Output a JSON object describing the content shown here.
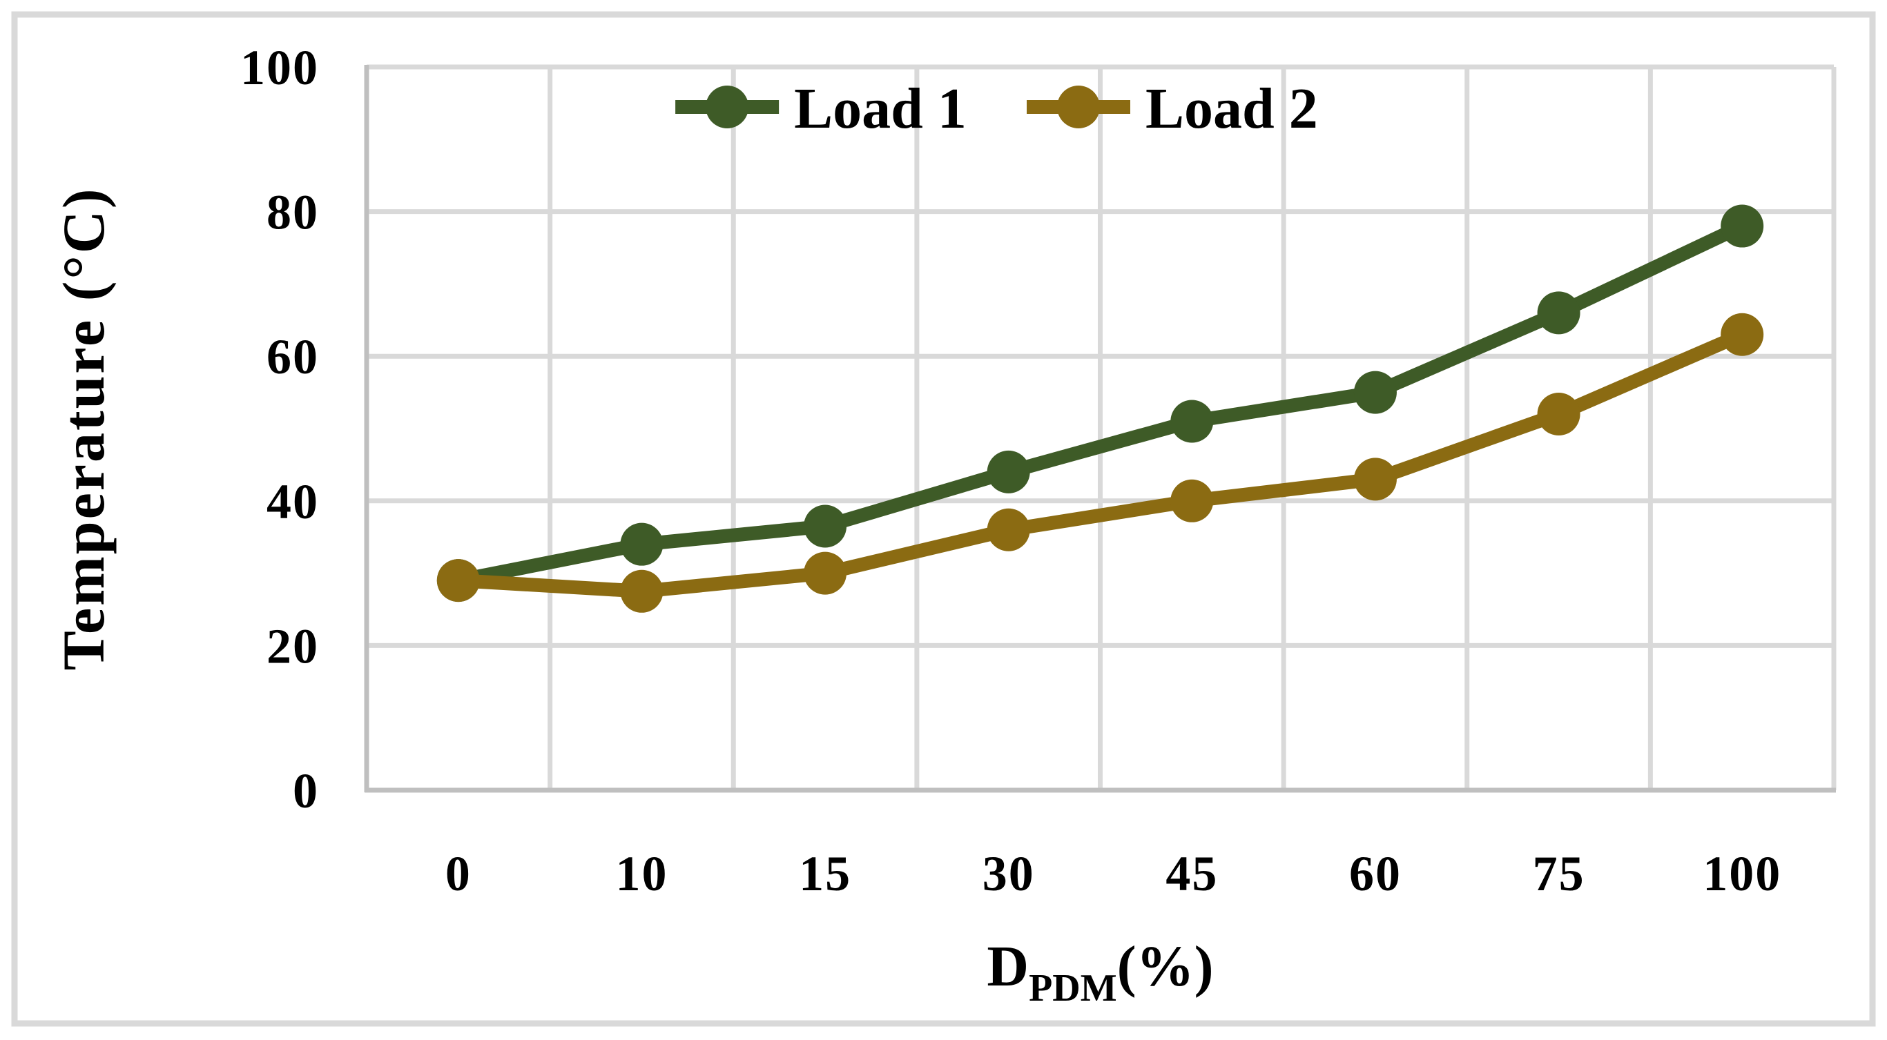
{
  "figure": {
    "background": "#FFFFFF",
    "border_color": "#D9D9D9"
  },
  "chart_data": {
    "type": "line",
    "title": "",
    "categories": [
      "0",
      "10",
      "15",
      "30",
      "45",
      "60",
      "75",
      "100"
    ],
    "series": [
      {
        "name": "Load 1",
        "color": "#3E5B27",
        "marker": "circle",
        "values": [
          29,
          34,
          36.5,
          44,
          51,
          55,
          66,
          78
        ]
      },
      {
        "name": "Load 2",
        "color": "#8B6B12",
        "marker": "circle",
        "values": [
          29,
          27.5,
          30,
          36,
          40,
          43,
          52,
          63
        ]
      }
    ],
    "xlabel": {
      "base": "D",
      "sub": "PDM",
      "suffix": "(%)"
    },
    "ylabel": "Temperature (°C)",
    "ylim": [
      0,
      100
    ],
    "yticks": [
      0,
      20,
      40,
      60,
      80,
      100
    ],
    "grid": true,
    "gridline_color": "#D9D9D9",
    "axis_color": "#BFBFBF",
    "text_color": "#000000",
    "legend_position": "top-center"
  }
}
